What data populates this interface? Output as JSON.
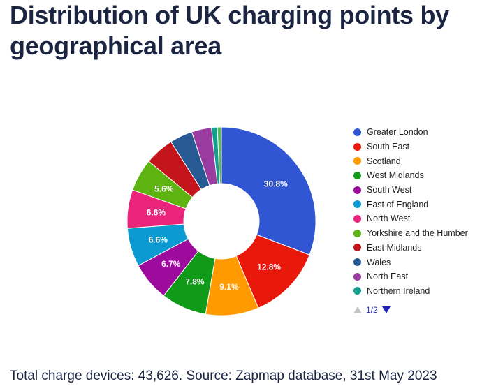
{
  "title": "Distribution of UK charging points by geographical area",
  "footer": "Total charge devices: 43,626. Source: Zapmap database, 31st May 2023",
  "legend": {
    "page_indicator": "1/2",
    "icons": {
      "prev": "triangle-up-icon",
      "next": "triangle-down-icon"
    }
  },
  "chart_data": {
    "type": "pie",
    "donut": true,
    "title": "Distribution of UK charging points by geographical area",
    "legend_position": "right",
    "slices": [
      {
        "label": "Greater London",
        "value": 30.8,
        "display": "30.8%",
        "color": "#3056d3"
      },
      {
        "label": "South East",
        "value": 12.8,
        "display": "12.8%",
        "color": "#e8190b"
      },
      {
        "label": "Scotland",
        "value": 9.1,
        "display": "9.1%",
        "color": "#ff9a00"
      },
      {
        "label": "West Midlands",
        "value": 7.8,
        "display": "7.8%",
        "color": "#0f9a18"
      },
      {
        "label": "South West",
        "value": 6.7,
        "display": "6.7%",
        "color": "#9c0b9c"
      },
      {
        "label": "East of England",
        "value": 6.6,
        "display": "6.6%",
        "color": "#0b9bd2"
      },
      {
        "label": "North West",
        "value": 6.6,
        "display": "6.6%",
        "color": "#e9247a"
      },
      {
        "label": "Yorkshire and the Humber",
        "value": 5.6,
        "display": "5.6%",
        "color": "#5db30f"
      },
      {
        "label": "East Midlands",
        "value": 5.0,
        "display": "",
        "color": "#c4141c"
      },
      {
        "label": "Wales",
        "value": 3.9,
        "display": "",
        "color": "#275a92"
      },
      {
        "label": "North East",
        "value": 3.4,
        "display": "",
        "color": "#9a3b9f"
      },
      {
        "label": "Northern Ireland",
        "value": 1.0,
        "display": "",
        "color": "#139f8f"
      },
      {
        "label": "",
        "value": 0.7,
        "display": "",
        "color": "#5cb85c"
      }
    ]
  }
}
